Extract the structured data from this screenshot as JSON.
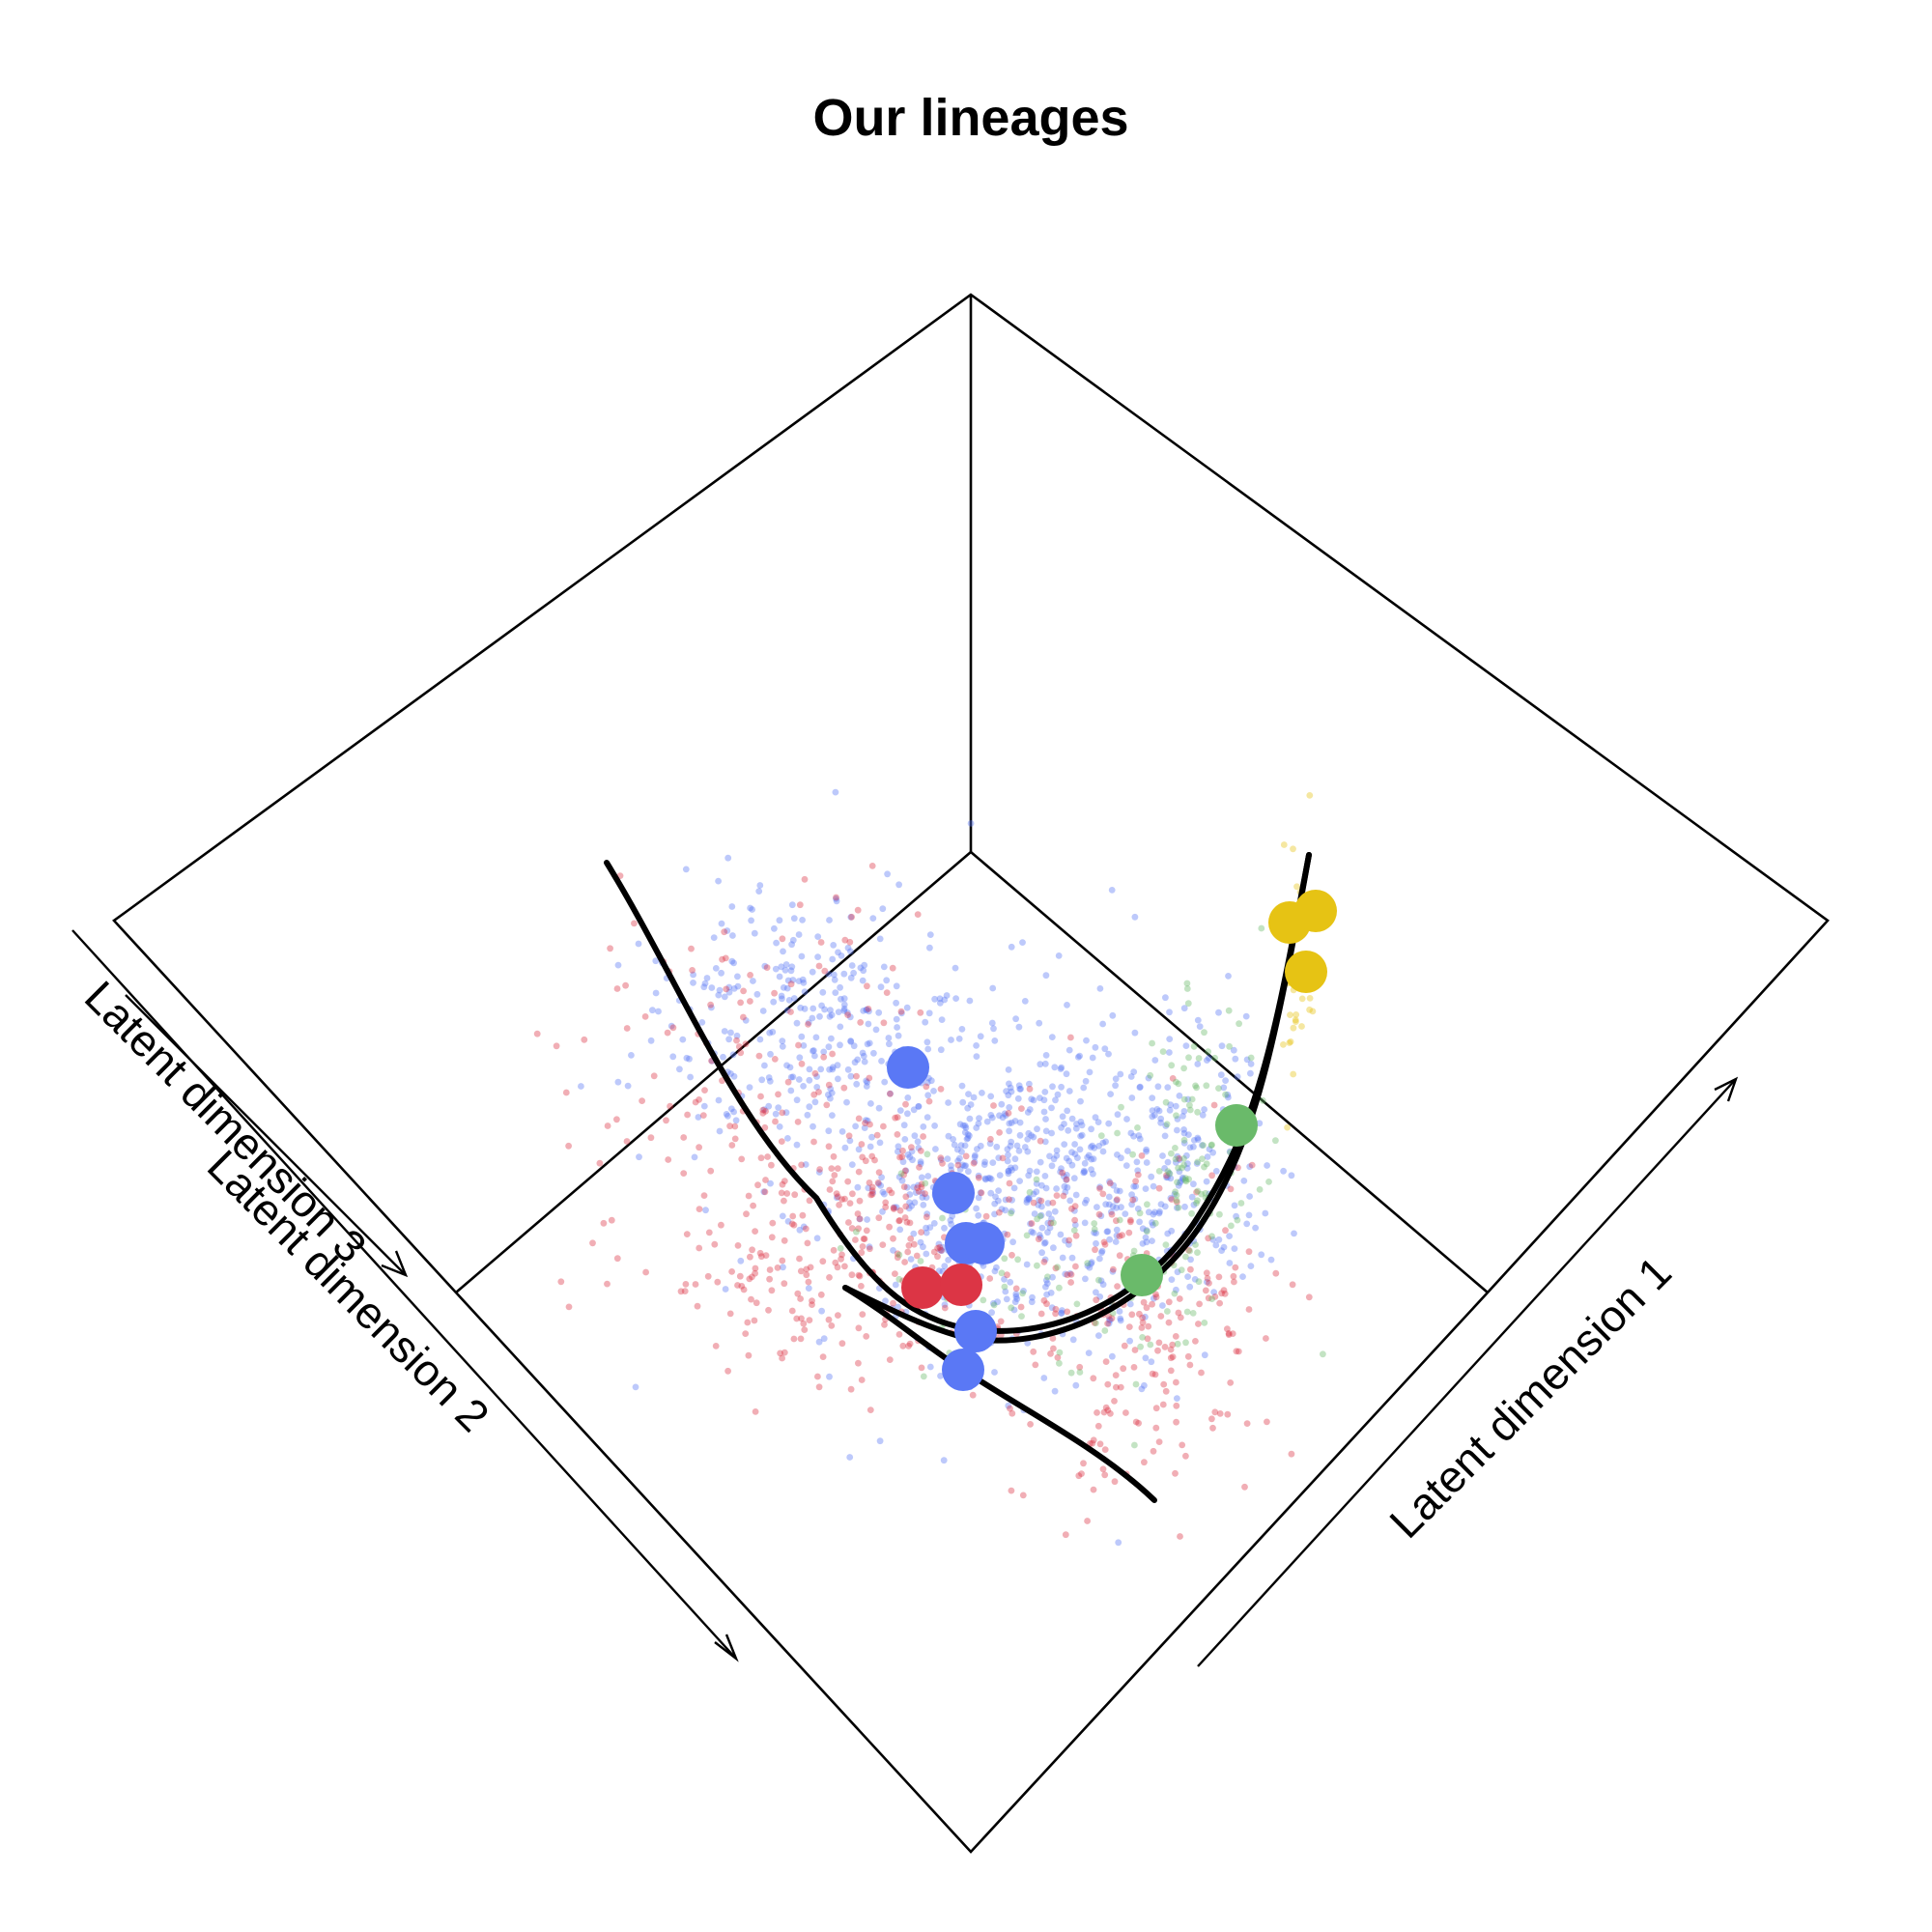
{
  "chart_data": {
    "type": "scatter",
    "title": "Our lineages",
    "axes": {
      "x": "Latent dimension 1",
      "y": "Latent dimension 2",
      "z": "Latent dimension 3"
    },
    "colors": {
      "blue": "#5a78f5",
      "red": "#dc3545",
      "green": "#6aba6a",
      "yellow": "#e6c314",
      "curve": "#000000"
    },
    "cell_groups": [
      {
        "color": "blue",
        "approx_count": 1100
      },
      {
        "color": "red",
        "approx_count": 650
      },
      {
        "color": "green",
        "approx_count": 180
      },
      {
        "color": "yellow",
        "approx_count": 40
      }
    ],
    "cluster_centers": [
      {
        "color": "blue",
        "label": ""
      },
      {
        "color": "blue",
        "label": ""
      },
      {
        "color": "blue",
        "label": ""
      },
      {
        "color": "blue",
        "label": ""
      },
      {
        "color": "blue",
        "label": ""
      },
      {
        "color": "blue",
        "label": ""
      },
      {
        "color": "red",
        "label": ""
      },
      {
        "color": "red",
        "label": ""
      },
      {
        "color": "green",
        "label": ""
      },
      {
        "color": "green",
        "label": ""
      },
      {
        "color": "yellow",
        "label": ""
      },
      {
        "color": "yellow",
        "label": ""
      },
      {
        "color": "yellow",
        "label": ""
      }
    ],
    "lineage_count": 3,
    "grid": false,
    "legend": "none"
  }
}
